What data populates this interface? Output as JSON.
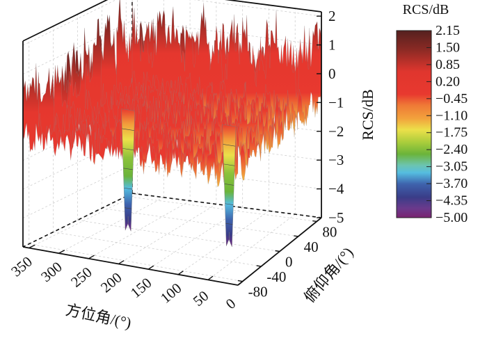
{
  "chart_data": {
    "type": "surface3d",
    "title": "",
    "x_axis": {
      "label": "方位角/(°)",
      "ticks": [
        "350",
        "300",
        "250",
        "200",
        "150",
        "100",
        "50",
        "0"
      ],
      "tick_values": [
        350,
        300,
        250,
        200,
        150,
        100,
        50,
        0
      ],
      "range": [
        0,
        360
      ]
    },
    "y_axis": {
      "label": "俯仰角/(°)",
      "ticks": [
        "-80",
        "-40",
        "0",
        "40",
        "80"
      ],
      "tick_values": [
        -80,
        -40,
        0,
        40,
        80
      ],
      "range": [
        -90,
        90
      ]
    },
    "z_axis": {
      "label": "RCS/dB",
      "ticks": [
        "2",
        "1",
        "0",
        "−1",
        "−2",
        "−3",
        "−4",
        "−5"
      ],
      "tick_values": [
        2,
        1,
        0,
        -1,
        -2,
        -3,
        -4,
        -5
      ],
      "range": [
        -5,
        2.15
      ]
    },
    "colorbar": {
      "title": "RCS/dB",
      "labels": [
        "2.15",
        "1.50",
        "0.85",
        "0.20",
        "−0.45",
        "−1.10",
        "−1.75",
        "−2.40",
        "−3.05",
        "−3.70",
        "−4.35",
        "−5.00"
      ],
      "values": [
        2.15,
        1.5,
        0.85,
        0.2,
        -0.45,
        -1.1,
        -1.75,
        -2.4,
        -3.05,
        -3.7,
        -4.35,
        -5.0
      ],
      "colors": [
        "#5a1f1f",
        "#8a2a24",
        "#c0322a",
        "#e5372e",
        "#e8432f",
        "#f0883a",
        "#f2d545",
        "#a8cc3c",
        "#6ab53a",
        "#5ec2d8",
        "#3a55a0",
        "#3a3a88",
        "#6a3a8c",
        "#7a2a7a"
      ]
    },
    "series_summary": {
      "baseline_rcs_db": 0,
      "fluctuation_db": [
        -1,
        2
      ],
      "nulls": [
        {
          "azimuth_deg": 270,
          "min_rcs_db": -5.0
        },
        {
          "azimuth_deg": 90,
          "min_rcs_db": -5.0
        }
      ]
    },
    "grid": true,
    "legend": "colorbar-right"
  }
}
